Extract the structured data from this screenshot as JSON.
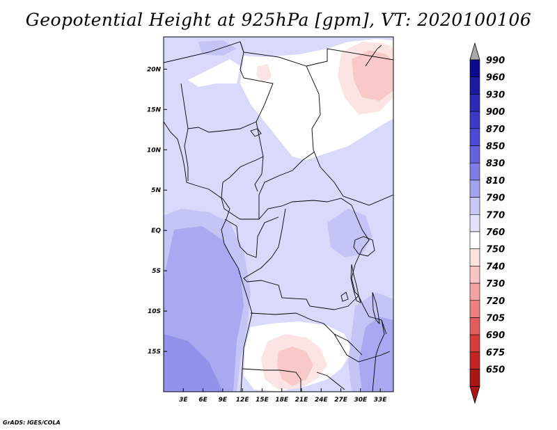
{
  "title": "Geopotential Height at 925hPa [gpm], VT: 2020100106",
  "credit": "GrADS: IGES/COLA",
  "map": {
    "lon_range": [
      0,
      35
    ],
    "lat_range": [
      -20,
      24
    ],
    "x_ticks": [
      {
        "value": 3,
        "label": "3E"
      },
      {
        "value": 6,
        "label": "6E"
      },
      {
        "value": 9,
        "label": "9E"
      },
      {
        "value": 12,
        "label": "12E"
      },
      {
        "value": 15,
        "label": "15E"
      },
      {
        "value": 18,
        "label": "18E"
      },
      {
        "value": 21,
        "label": "21E"
      },
      {
        "value": 24,
        "label": "24E"
      },
      {
        "value": 27,
        "label": "27E"
      },
      {
        "value": 30,
        "label": "30E"
      },
      {
        "value": 33,
        "label": "33E"
      }
    ],
    "y_ticks": [
      {
        "value": 20,
        "label": "20N"
      },
      {
        "value": 15,
        "label": "15N"
      },
      {
        "value": 10,
        "label": "10N"
      },
      {
        "value": 5,
        "label": "5N"
      },
      {
        "value": 0,
        "label": "EQ"
      },
      {
        "value": -5,
        "label": "5S"
      },
      {
        "value": -10,
        "label": "10S"
      },
      {
        "value": -15,
        "label": "15S"
      }
    ]
  },
  "colorbar": {
    "levels": [
      "990",
      "960",
      "930",
      "900",
      "870",
      "850",
      "830",
      "810",
      "790",
      "770",
      "760",
      "750",
      "740",
      "730",
      "720",
      "705",
      "690",
      "675",
      "650"
    ],
    "colors": [
      "#0b0a8f",
      "#1c1aa3",
      "#2b29b5",
      "#3b39c6",
      "#4c4ad5",
      "#6462e0",
      "#7f7ee8",
      "#a3a2ef",
      "#c7c7f6",
      "#e2e2fb",
      "#ffffff",
      "#fde1e1",
      "#f9c4c4",
      "#f3a3a3",
      "#ec8080",
      "#e25c5c",
      "#d63c3c",
      "#c42424",
      "#a81616"
    ],
    "top_arrow_color": "#a8a8a8",
    "bottom_arrow_color": "#a81616"
  },
  "field_colors": {
    "c790": "#d9d9fb",
    "c810": "#c4c4f6",
    "c830": "#aaa8f1",
    "c850": "#9391ea",
    "c760": "#ffffff",
    "c750": "#fde4e4",
    "c740": "#f9c9c9"
  }
}
